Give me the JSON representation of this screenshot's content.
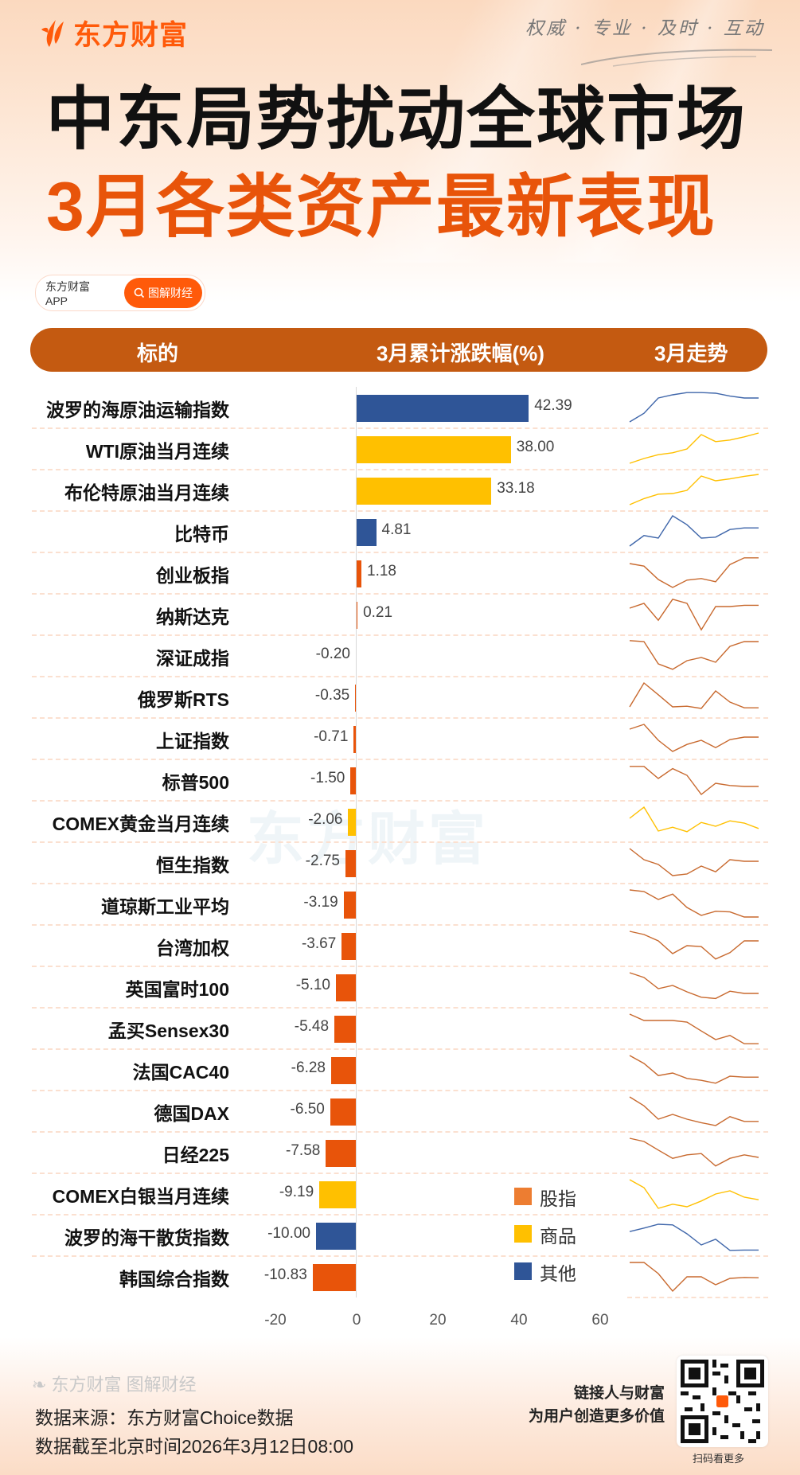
{
  "brand": {
    "name": "东方财富",
    "tagline": "权威 · 专业 · 及时 · 互动"
  },
  "title": {
    "line1": "中东局势扰动全球市场",
    "line2": "3月各类资产最新表现"
  },
  "app_pill": {
    "left": "东方财富APP",
    "right": "图解财经",
    "icon": "search-icon"
  },
  "table_header": {
    "col1": "标的",
    "col2": "3月累计涨跌幅(%)",
    "col3": "3月走势"
  },
  "colors": {
    "股指": "#E8540A",
    "商品": "#FFC000",
    "其他": "#2F5597",
    "header": "#C45A11",
    "accent": "#FF5A0A"
  },
  "legend": [
    {
      "label": "股指",
      "color": "#ED7D31"
    },
    {
      "label": "商品",
      "color": "#FFC000"
    },
    {
      "label": "其他",
      "color": "#2F5597"
    }
  ],
  "axis": {
    "ticks": [
      "-20",
      "0",
      "20",
      "40",
      "60"
    ]
  },
  "chart_data": {
    "type": "bar",
    "orientation": "horizontal",
    "title": "3月各类资产最新表现",
    "xlabel": "3月累计涨跌幅(%)",
    "ylabel": "标的",
    "xlim": [
      -20,
      60
    ],
    "xticks": [
      -20,
      0,
      20,
      40,
      60
    ],
    "grid": false,
    "legend_position": "bottom-right",
    "legend": [
      "股指",
      "商品",
      "其他"
    ],
    "categories": [
      "波罗的海原油运输指数",
      "WTI原油当月连续",
      "布伦特原油当月连续",
      "比特币",
      "创业板指",
      "纳斯达克",
      "深证成指",
      "俄罗斯RTS",
      "上证指数",
      "标普500",
      "COMEX黄金当月连续",
      "恒生指数",
      "道琼斯工业平均",
      "台湾加权",
      "英国富时100",
      "孟买Sensex30",
      "法国CAC40",
      "德国DAX",
      "日经225",
      "COMEX白银当月连续",
      "波罗的海干散货指数",
      "韩国综合指数"
    ],
    "values": [
      42.39,
      38.0,
      33.18,
      4.81,
      1.18,
      0.21,
      -0.2,
      -0.35,
      -0.71,
      -1.5,
      -2.06,
      -2.75,
      -3.19,
      -3.67,
      -5.1,
      -5.48,
      -6.28,
      -6.5,
      -7.58,
      -9.19,
      -10.0,
      -10.83
    ],
    "groups": [
      "其他",
      "商品",
      "商品",
      "其他",
      "股指",
      "股指",
      "股指",
      "股指",
      "股指",
      "股指",
      "商品",
      "股指",
      "股指",
      "股指",
      "股指",
      "股指",
      "股指",
      "股指",
      "股指",
      "商品",
      "其他",
      "股指"
    ]
  },
  "rows": [
    {
      "name": "波罗的海原油运输指数",
      "value": 42.39,
      "label": "42.39",
      "group": "其他",
      "spark": [
        0.95,
        0.68,
        0.2,
        0.1,
        0.03,
        0.03,
        0.05,
        0.14,
        0.2,
        0.2
      ]
    },
    {
      "name": "WTI原油当月连续",
      "value": 38.0,
      "label": "38.00",
      "group": "商品",
      "spark": [
        0.95,
        0.8,
        0.68,
        0.62,
        0.5,
        0.05,
        0.27,
        0.22,
        0.12,
        0.0
      ]
    },
    {
      "name": "布伦特原油当月连续",
      "value": 33.18,
      "label": "33.18",
      "group": "商品",
      "spark": [
        0.95,
        0.76,
        0.62,
        0.6,
        0.5,
        0.05,
        0.2,
        0.14,
        0.06,
        0.0
      ]
    },
    {
      "name": "比特币",
      "value": 4.81,
      "label": "4.81",
      "group": "其他",
      "spark": [
        0.95,
        0.62,
        0.7,
        0.0,
        0.28,
        0.7,
        0.67,
        0.43,
        0.38,
        0.38
      ]
    },
    {
      "name": "创业板指",
      "value": 1.18,
      "label": "1.18",
      "group": "股指",
      "spark": [
        0.2,
        0.28,
        0.7,
        0.95,
        0.72,
        0.67,
        0.77,
        0.23,
        0.02,
        0.02
      ]
    },
    {
      "name": "纳斯达克",
      "value": 0.21,
      "label": "0.21",
      "group": "股指",
      "spark": [
        0.3,
        0.15,
        0.68,
        0.02,
        0.15,
        0.98,
        0.25,
        0.25,
        0.21,
        0.21
      ]
    },
    {
      "name": "深证成指",
      "value": -0.2,
      "label": "-0.20",
      "group": "股指",
      "spark": [
        0.02,
        0.05,
        0.75,
        0.92,
        0.65,
        0.55,
        0.7,
        0.2,
        0.05,
        0.05
      ]
    },
    {
      "name": "俄罗斯RTS",
      "value": -0.35,
      "label": "-0.35",
      "group": "股指",
      "spark": [
        0.8,
        0.05,
        0.42,
        0.8,
        0.78,
        0.85,
        0.3,
        0.65,
        0.83,
        0.83
      ]
    },
    {
      "name": "上证指数",
      "value": -0.71,
      "label": "-0.71",
      "group": "股指",
      "spark": [
        0.2,
        0.05,
        0.55,
        0.9,
        0.68,
        0.55,
        0.78,
        0.53,
        0.45,
        0.45
      ]
    },
    {
      "name": "标普500",
      "value": -1.5,
      "label": "-1.50",
      "group": "股指",
      "spark": [
        0.07,
        0.07,
        0.45,
        0.14,
        0.35,
        0.95,
        0.6,
        0.67,
        0.7,
        0.7
      ]
    },
    {
      "name": "COMEX黄金当月连续",
      "value": -2.06,
      "label": "-2.06",
      "group": "商品",
      "spark": [
        0.4,
        0.05,
        0.8,
        0.68,
        0.82,
        0.53,
        0.65,
        0.48,
        0.55,
        0.72
      ]
    },
    {
      "name": "恒生指数",
      "value": -2.75,
      "label": "-2.75",
      "group": "股指",
      "spark": [
        0.05,
        0.4,
        0.55,
        0.9,
        0.85,
        0.6,
        0.78,
        0.4,
        0.45,
        0.45
      ]
    },
    {
      "name": "道琼斯工业平均",
      "value": -3.19,
      "label": "-3.19",
      "group": "股指",
      "spark": [
        0.05,
        0.1,
        0.35,
        0.18,
        0.6,
        0.85,
        0.72,
        0.74,
        0.9,
        0.9
      ]
    },
    {
      "name": "台湾加权",
      "value": -3.67,
      "label": "-3.67",
      "group": "股指",
      "spark": [
        0.05,
        0.15,
        0.35,
        0.75,
        0.5,
        0.53,
        0.92,
        0.72,
        0.35,
        0.35
      ]
    },
    {
      "name": "英国富时100",
      "value": -5.1,
      "label": "-5.10",
      "group": "股指",
      "spark": [
        0.05,
        0.2,
        0.55,
        0.45,
        0.65,
        0.82,
        0.86,
        0.63,
        0.7,
        0.7
      ]
    },
    {
      "name": "孟买Sensex30",
      "value": -5.48,
      "label": "-5.48",
      "group": "股指",
      "spark": [
        0.05,
        0.25,
        0.25,
        0.25,
        0.3,
        0.58,
        0.85,
        0.72,
        0.98,
        0.98
      ]
    },
    {
      "name": "法国CAC40",
      "value": -6.28,
      "label": "-6.28",
      "group": "股指",
      "spark": [
        0.05,
        0.3,
        0.68,
        0.6,
        0.77,
        0.83,
        0.92,
        0.7,
        0.73,
        0.73
      ]
    },
    {
      "name": "德国DAX",
      "value": -6.5,
      "label": "-6.50",
      "group": "股指",
      "spark": [
        0.05,
        0.33,
        0.75,
        0.6,
        0.75,
        0.86,
        0.95,
        0.67,
        0.82,
        0.82
      ]
    },
    {
      "name": "日经225",
      "value": -7.58,
      "label": "-7.58",
      "group": "股指",
      "spark": [
        0.05,
        0.15,
        0.42,
        0.68,
        0.57,
        0.53,
        0.92,
        0.68,
        0.57,
        0.65
      ]
    },
    {
      "name": "COMEX白银当月连续",
      "value": -9.19,
      "label": "-9.19",
      "group": "商品",
      "spark": [
        0.05,
        0.3,
        0.95,
        0.82,
        0.9,
        0.72,
        0.5,
        0.4,
        0.6,
        0.68
      ]
    },
    {
      "name": "波罗的海干散货指数",
      "value": -10.0,
      "label": "-10.00",
      "group": "其他",
      "spark": [
        0.38,
        0.27,
        0.15,
        0.17,
        0.45,
        0.8,
        0.62,
        0.97,
        0.96,
        0.96
      ]
    },
    {
      "name": "韩国综合指数",
      "value": -10.83,
      "label": "-10.83",
      "group": "股指",
      "spark": [
        0.05,
        0.05,
        0.4,
        0.95,
        0.5,
        0.5,
        0.75,
        0.55,
        0.52,
        0.53
      ]
    }
  ],
  "footer": {
    "logo": "东方财富 图解财经",
    "source": "数据来源：东方财富Choice数据",
    "as_of": "数据截至北京时间2026年3月12日08:00",
    "slogan1": "链接人与财富",
    "slogan2": "为用户创造更多价值",
    "qr_caption": "扫码看更多"
  },
  "watermark": "东方财富"
}
